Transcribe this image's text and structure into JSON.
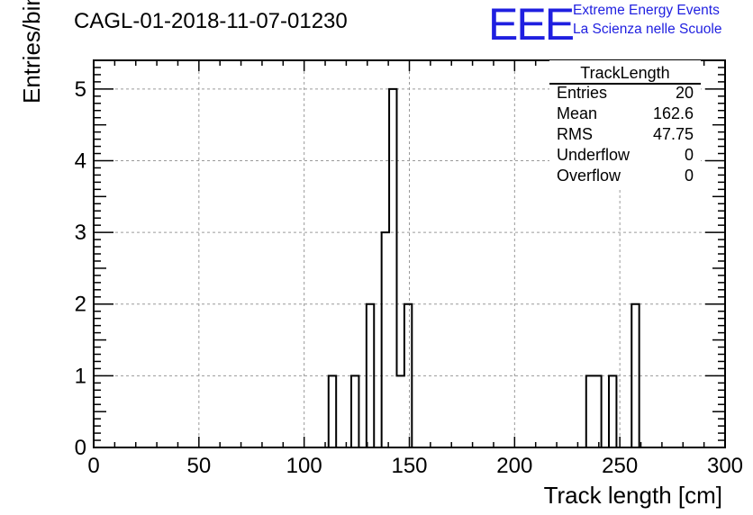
{
  "header": {
    "run_title": "CAGL-01-2018-11-07-01230",
    "logo_text": "EEE",
    "logo_line1": "Extreme Energy Events",
    "logo_line2": "La Scienza nelle Scuole",
    "logo_color": "#1f1fe0"
  },
  "stats": {
    "title": "TrackLength",
    "rows": [
      {
        "label": "Entries",
        "value": "20"
      },
      {
        "label": "Mean",
        "value": "162.6"
      },
      {
        "label": "RMS",
        "value": "47.75"
      },
      {
        "label": "Underflow",
        "value": "0"
      },
      {
        "label": "Overflow",
        "value": "0"
      }
    ]
  },
  "chart_data": {
    "type": "bar",
    "histogram": true,
    "title": "CAGL-01-2018-11-07-01230",
    "xlabel": "Track length [cm]",
    "ylabel": "Entries/bin",
    "xlim": [
      0,
      300
    ],
    "ylim": [
      0,
      5.4
    ],
    "bin_width": 3.6,
    "xticks": [
      0,
      50,
      100,
      150,
      200,
      250,
      300
    ],
    "yticks": [
      0,
      1,
      2,
      3,
      4,
      5
    ],
    "grid": true,
    "bins": [
      {
        "x": 111.6,
        "value": 1
      },
      {
        "x": 122.4,
        "value": 1
      },
      {
        "x": 126.0,
        "value": 0
      },
      {
        "x": 129.6,
        "value": 2
      },
      {
        "x": 133.2,
        "value": 0
      },
      {
        "x": 136.8,
        "value": 3
      },
      {
        "x": 140.4,
        "value": 5
      },
      {
        "x": 144.0,
        "value": 1
      },
      {
        "x": 147.6,
        "value": 2
      },
      {
        "x": 234.0,
        "value": 1
      },
      {
        "x": 237.6,
        "value": 1
      },
      {
        "x": 244.8,
        "value": 1
      },
      {
        "x": 252.0,
        "value": 0
      },
      {
        "x": 255.6,
        "value": 2
      }
    ]
  }
}
